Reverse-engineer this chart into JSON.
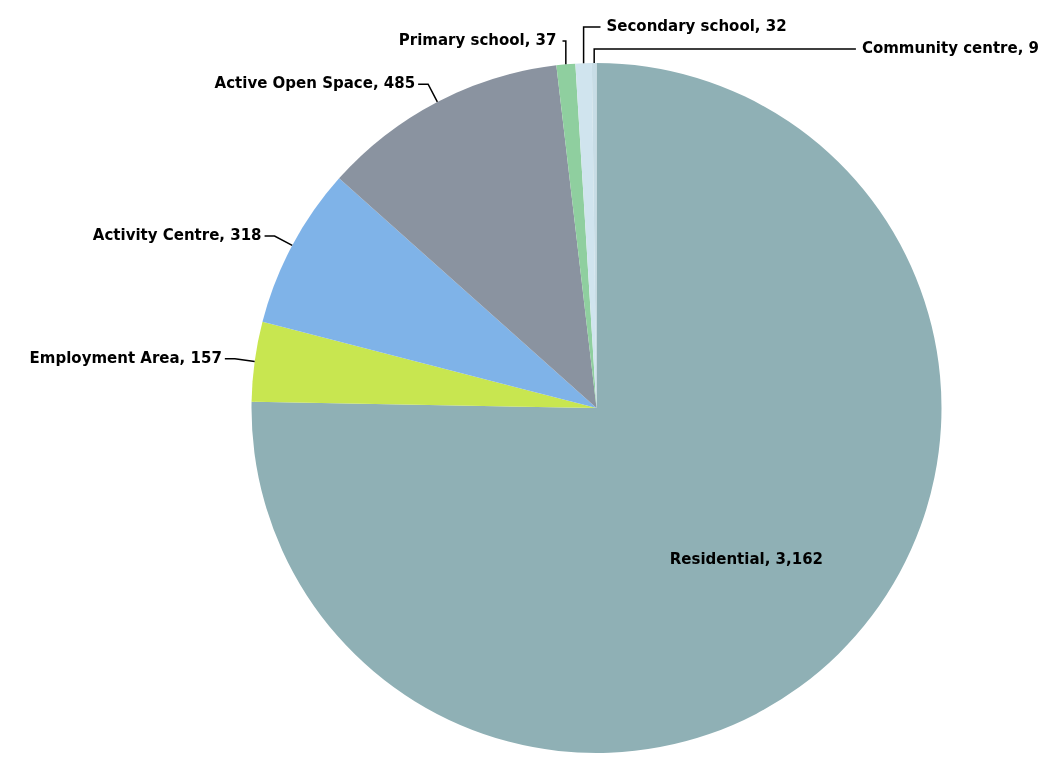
{
  "chart_data": {
    "type": "pie",
    "categories": [
      "Residential",
      "Employment Area",
      "Activity Centre",
      "Active Open Space",
      "Primary school",
      "Secondary school",
      "Community centre"
    ],
    "values": [
      3162,
      157,
      318,
      485,
      37,
      32,
      9
    ],
    "value_labels": [
      "3,162",
      "157",
      "318",
      "485",
      "37",
      "32",
      "9"
    ],
    "colors": [
      "#8fb0b5",
      "#c8e650",
      "#7fb3e8",
      "#8a93a0",
      "#8fcf9f",
      "#d0e4ee",
      "#c8dde6"
    ],
    "legend": false
  }
}
